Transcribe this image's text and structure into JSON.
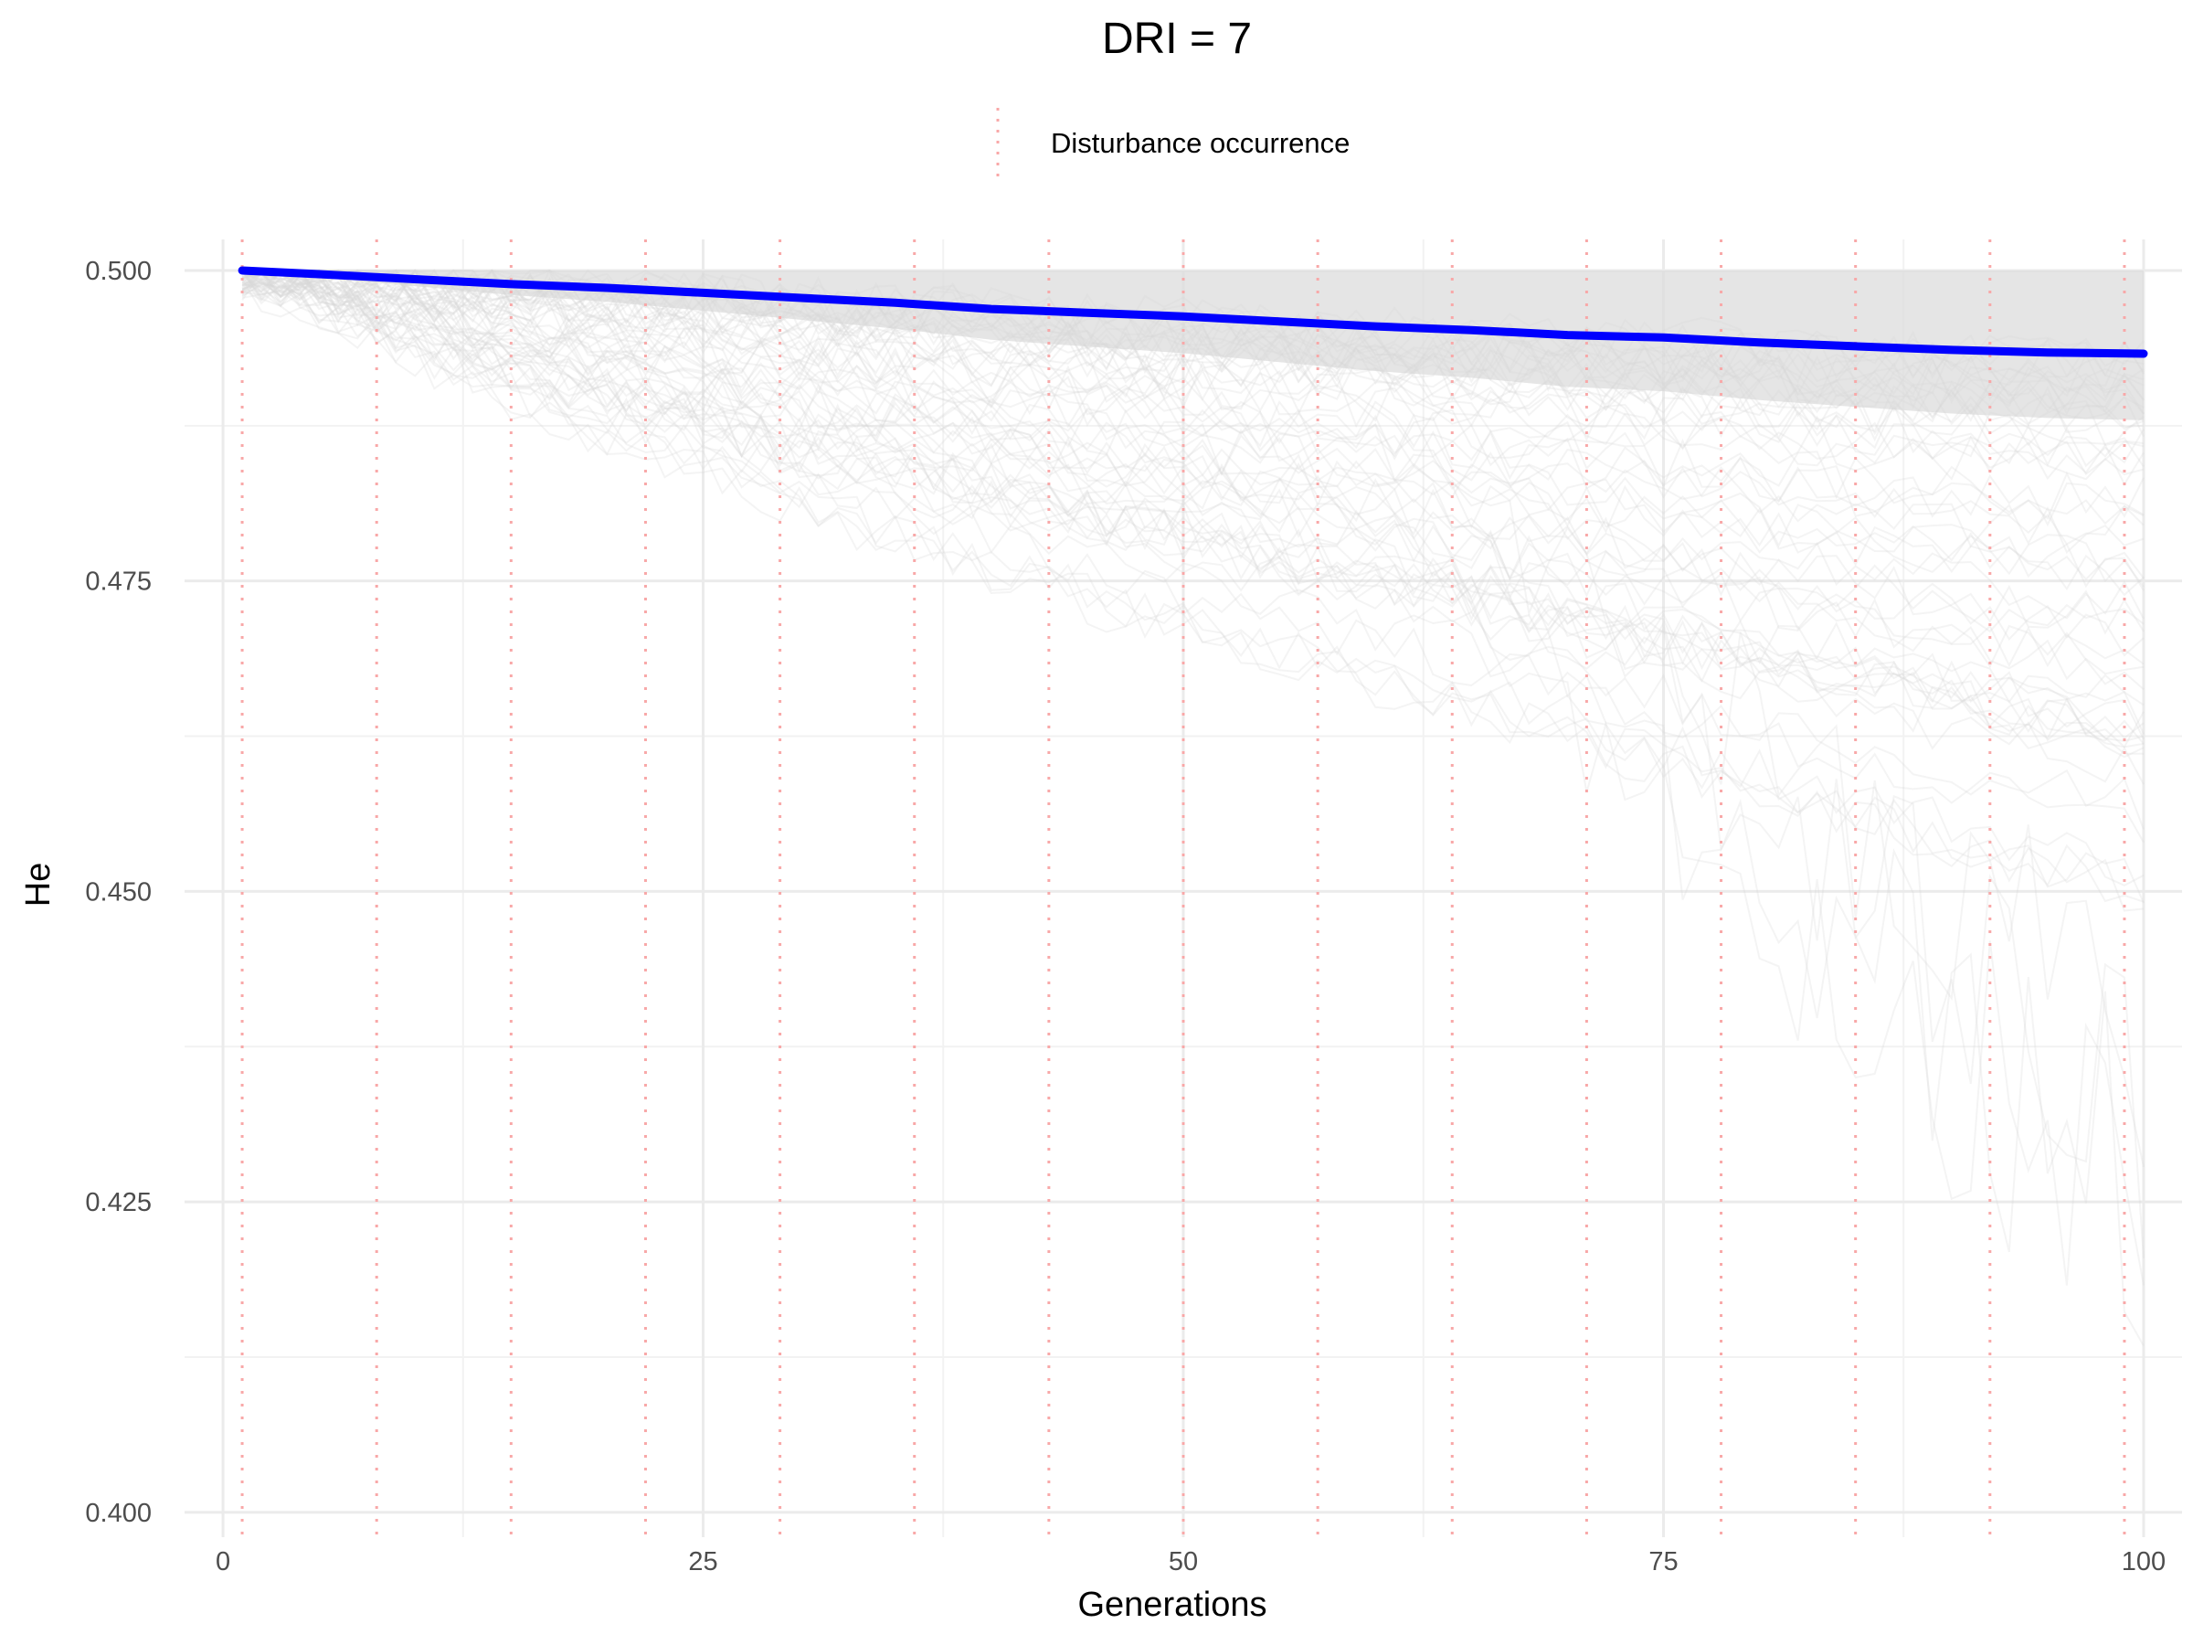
{
  "chart_data": {
    "type": "line",
    "title": "DRI = 7",
    "xlabel": "Generations",
    "ylabel": "He",
    "xlim": [
      -2,
      102
    ],
    "ylim": [
      0.398,
      0.5025
    ],
    "x_ticks": [
      0,
      25,
      50,
      75,
      100
    ],
    "x_tick_labels": [
      "0",
      "25",
      "50",
      "75",
      "100"
    ],
    "y_ticks": [
      0.4,
      0.425,
      0.45,
      0.475,
      0.5
    ],
    "y_tick_labels": [
      "0.400",
      "0.425",
      "0.450",
      "0.475",
      "0.500"
    ],
    "grid": true,
    "legend": {
      "position": "top",
      "entries": [
        {
          "label": "Disturbance occurrence",
          "color": "#f8a8a8",
          "style": "dotted"
        }
      ]
    },
    "disturbance_generations": [
      1,
      8,
      15,
      22,
      29,
      36,
      43,
      50,
      57,
      64,
      71,
      78,
      85,
      92,
      99
    ],
    "series": [
      {
        "role": "mean",
        "color": "#0000ff",
        "x": [
          1,
          5,
          10,
          15,
          20,
          25,
          30,
          35,
          40,
          45,
          50,
          55,
          60,
          65,
          70,
          75,
          80,
          85,
          90,
          95,
          100
        ],
        "y": [
          0.5,
          0.4997,
          0.4993,
          0.4989,
          0.4986,
          0.4982,
          0.4978,
          0.4974,
          0.4969,
          0.4966,
          0.4963,
          0.4959,
          0.4955,
          0.4952,
          0.4948,
          0.4946,
          0.4942,
          0.4939,
          0.4936,
          0.4934,
          0.4933
        ]
      }
    ],
    "replicates": {
      "color": "#d6d6d6",
      "description_free": true,
      "count": 60,
      "x_range": [
        1,
        100
      ],
      "upper": 0.5,
      "band_lower": [
        [
          1,
          0.4995
        ],
        [
          5,
          0.498
        ],
        [
          10,
          0.4955
        ],
        [
          15,
          0.493
        ],
        [
          20,
          0.491
        ],
        [
          25,
          0.489
        ],
        [
          30,
          0.487
        ],
        [
          35,
          0.4855
        ],
        [
          40,
          0.4835
        ],
        [
          45,
          0.482
        ],
        [
          50,
          0.4805
        ],
        [
          55,
          0.479
        ],
        [
          60,
          0.4775
        ],
        [
          65,
          0.476
        ],
        [
          70,
          0.4745
        ],
        [
          75,
          0.473
        ],
        [
          80,
          0.4715
        ],
        [
          85,
          0.47
        ],
        [
          90,
          0.4685
        ],
        [
          95,
          0.4672
        ],
        [
          100,
          0.466
        ]
      ],
      "extreme_min": 0.404
    }
  }
}
